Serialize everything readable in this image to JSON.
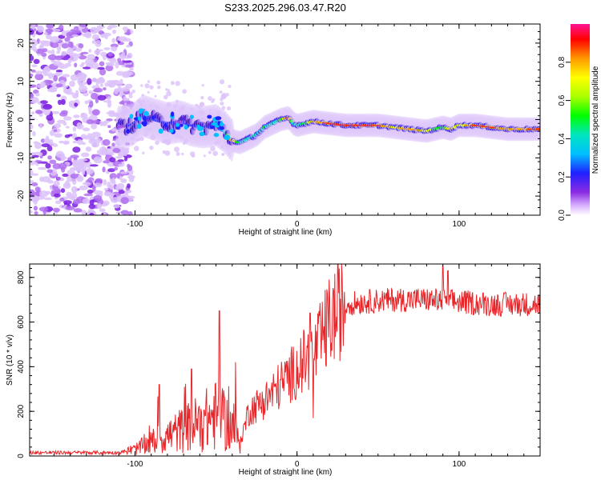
{
  "title": "S233.2025.296.03.47.R20",
  "colors": {
    "snr_line": "#e8262a",
    "colormap": [
      "#ffffff",
      "#d9b3ff",
      "#8a2be2",
      "#2020ff",
      "#00bfff",
      "#00e5c0",
      "#00ff00",
      "#aaff00",
      "#ffff00",
      "#ff9900",
      "#ff0000",
      "#ff1493"
    ]
  },
  "chart_data": [
    {
      "type": "heatmap",
      "title": "S233.2025.296.03.47.R20",
      "xlabel": "Height of straight line (km)",
      "ylabel": "Frequency (Hz)",
      "xlim": [
        -165,
        150
      ],
      "ylim": [
        -25,
        25
      ],
      "xticks": [
        -100,
        0,
        100
      ],
      "xtick_labels": [
        "-100",
        "0",
        "100"
      ],
      "yticks": [
        -20,
        -10,
        0,
        10,
        20
      ],
      "ytick_labels": [
        "-20",
        "-10",
        "0",
        "10",
        "20"
      ],
      "colorbar": {
        "label": "Normalized spectral amplitude",
        "range": [
          0,
          1
        ],
        "ticks": [
          0.0,
          0.2,
          0.4,
          0.6,
          0.8
        ],
        "tick_labels": [
          "0.0",
          "0.2",
          "0.4",
          "0.6",
          "0.8"
        ]
      },
      "ridge": {
        "x": [
          -110,
          -102,
          -95,
          -88,
          -80,
          -72,
          -65,
          -58,
          -50,
          -45,
          -40,
          -35,
          -30,
          -25,
          -20,
          -15,
          -10,
          -5,
          -2,
          0,
          5,
          10,
          20,
          30,
          40,
          50,
          60,
          70,
          80,
          90,
          95,
          100,
          110,
          120,
          130,
          150
        ],
        "y": [
          -2,
          -1.5,
          1,
          0,
          -1,
          -0.5,
          -1.5,
          -2,
          -1.5,
          -3,
          -5.5,
          -6,
          -5,
          -4,
          -2,
          -1,
          0,
          0.5,
          -1,
          -1.5,
          -1,
          -0.5,
          -1,
          -1.5,
          -1.5,
          -1.5,
          -2,
          -2.5,
          -3,
          -2,
          -2.5,
          -1.5,
          -1.5,
          -2,
          -2.5,
          -2.5
        ],
        "amp": [
          0.2,
          0.3,
          0.35,
          0.3,
          0.3,
          0.25,
          0.3,
          0.3,
          0.3,
          0.45,
          0.85,
          0.6,
          0.5,
          0.55,
          0.6,
          0.5,
          0.6,
          0.9,
          0.5,
          0.55,
          0.6,
          0.8,
          0.9,
          0.95,
          0.95,
          0.9,
          0.75,
          0.85,
          0.75,
          0.6,
          0.8,
          0.7,
          0.9,
          0.9,
          0.8,
          0.9
        ]
      },
      "noise_region_x": [
        -165,
        -110
      ]
    },
    {
      "type": "line",
      "xlabel": "Height of straight line (km)",
      "ylabel": "SNR (10 * v/v)",
      "xlim": [
        -165,
        150
      ],
      "ylim": [
        0,
        860
      ],
      "xticks": [
        -100,
        0,
        100
      ],
      "xtick_labels": [
        "-100",
        "0",
        "100"
      ],
      "yticks": [
        0,
        200,
        400,
        600,
        800
      ],
      "ytick_labels": [
        "0",
        "200",
        "400",
        "600",
        "800"
      ],
      "series": [
        {
          "name": "SNR",
          "trend_x": [
            -165,
            -110,
            -100,
            -90,
            -80,
            -70,
            -60,
            -50,
            -40,
            -35,
            -30,
            -20,
            -10,
            0,
            5,
            10,
            15,
            20,
            30,
            40,
            60,
            80,
            100,
            120,
            150
          ],
          "trend_y": [
            15,
            15,
            30,
            60,
            90,
            120,
            150,
            180,
            130,
            60,
            200,
            250,
            320,
            390,
            430,
            450,
            520,
            600,
            680,
            690,
            700,
            700,
            690,
            680,
            680
          ],
          "spikes": [
            {
              "x": -85,
              "y": 320
            },
            {
              "x": -65,
              "y": 390
            },
            {
              "x": -48,
              "y": 650
            },
            {
              "x": -38,
              "y": 420
            },
            {
              "x": 8,
              "y": 640
            },
            {
              "x": 10,
              "y": 170
            },
            {
              "x": 90,
              "y": 850
            },
            {
              "x": 93,
              "y": 830
            }
          ]
        }
      ]
    }
  ]
}
